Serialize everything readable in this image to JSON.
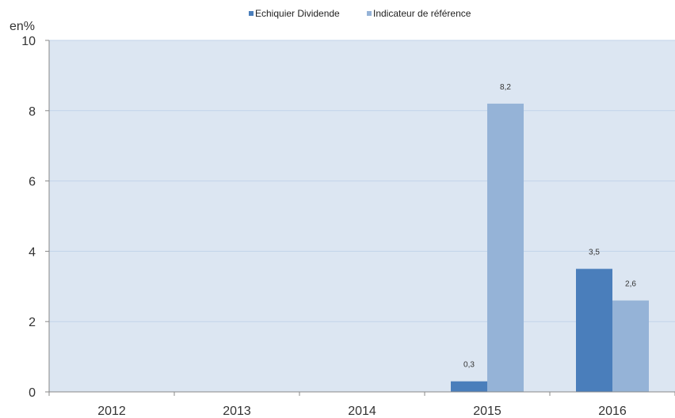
{
  "chart_data": {
    "type": "bar",
    "unit_label": "en%",
    "categories": [
      "2012",
      "2013",
      "2014",
      "2015",
      "2016"
    ],
    "series": [
      {
        "name": "Echiquier Dividende",
        "color": "#4a7ebb",
        "values": [
          null,
          null,
          null,
          0.3,
          3.5
        ],
        "labels": [
          "",
          "",
          "",
          "0,3",
          "3,5"
        ]
      },
      {
        "name": "Indicateur de référence",
        "color": "#95b3d7",
        "values": [
          null,
          null,
          null,
          8.2,
          2.6
        ],
        "labels": [
          "",
          "",
          "",
          "8,2",
          "2,6"
        ]
      }
    ],
    "ylim": [
      0,
      10
    ],
    "yticks": [
      0,
      2,
      4,
      6,
      8,
      10
    ],
    "ytick_labels": [
      "0",
      "2",
      "4",
      "6",
      "8",
      "10"
    ],
    "grid": true,
    "legend_position": "top-center",
    "plot_background": "#dce6f2"
  }
}
